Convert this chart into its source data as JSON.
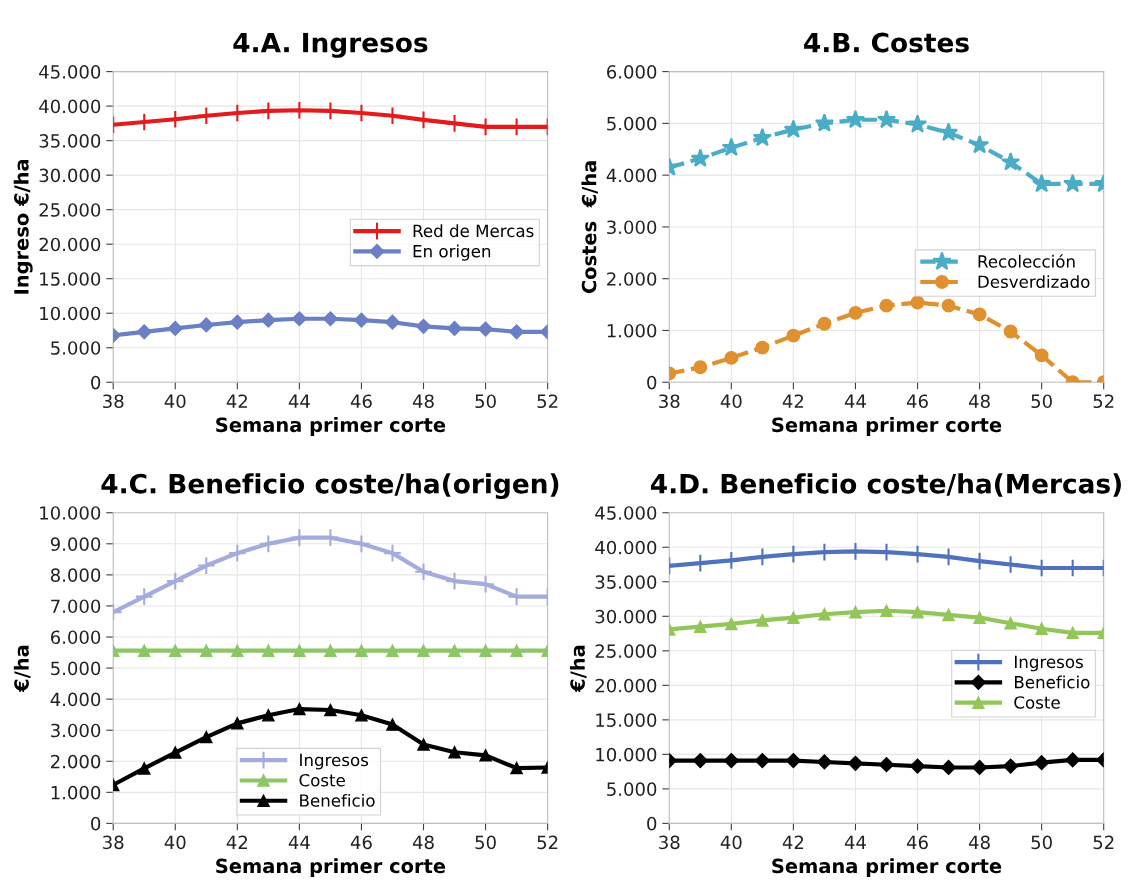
{
  "chart_data": [
    {
      "type": "line",
      "title": "4.A. Ingresos",
      "xlabel": "Semana primer corte",
      "ylabel": "Ingreso €/ha",
      "legend": "center right",
      "grid": true,
      "x": [
        38,
        39,
        40,
        41,
        42,
        43,
        44,
        45,
        46,
        47,
        48,
        49,
        50,
        51,
        52
      ],
      "xlim": [
        38,
        52
      ],
      "xticks": [
        38,
        40,
        42,
        44,
        46,
        48,
        50,
        52
      ],
      "ylim": [
        0,
        45000
      ],
      "yticks": [
        {
          "value": 0,
          "label": "0"
        },
        {
          "value": 5000,
          "label": "5.000"
        },
        {
          "value": 10000,
          "label": "10.000"
        },
        {
          "value": 15000,
          "label": "15.000"
        },
        {
          "value": 20000,
          "label": "20.000"
        },
        {
          "value": 25000,
          "label": "25.000"
        },
        {
          "value": 30000,
          "label": "30.000"
        },
        {
          "value": 35000,
          "label": "35.000"
        },
        {
          "value": 40000,
          "label": "40.000"
        },
        {
          "value": 45000,
          "label": "45.000"
        }
      ],
      "series": [
        {
          "name": "Red de Mercas",
          "color": "#e41a1c",
          "marker": "cross",
          "values": [
            37300,
            37700,
            38100,
            38600,
            39000,
            39300,
            39400,
            39300,
            39000,
            38600,
            38000,
            37500,
            37000,
            37000,
            37000
          ]
        },
        {
          "name": "En origen",
          "color": "#6b7fc4",
          "marker": "diamond",
          "values": [
            6800,
            7300,
            7800,
            8300,
            8700,
            9000,
            9200,
            9200,
            9000,
            8700,
            8100,
            7800,
            7700,
            7300,
            7300
          ]
        }
      ]
    },
    {
      "type": "line",
      "title": "4.B. Costes",
      "xlabel": "Semana primer corte",
      "ylabel": "Costes  €/ha",
      "legend": "lower right",
      "grid": true,
      "line_style": "dashed",
      "x": [
        38,
        39,
        40,
        41,
        42,
        43,
        44,
        45,
        46,
        47,
        48,
        49,
        50,
        51,
        52
      ],
      "xlim": [
        38,
        52
      ],
      "xticks": [
        38,
        40,
        42,
        44,
        46,
        48,
        50,
        52
      ],
      "ylim": [
        0,
        6000
      ],
      "yticks": [
        {
          "value": 0,
          "label": "0"
        },
        {
          "value": 1000,
          "label": "1.000"
        },
        {
          "value": 2000,
          "label": "2.000"
        },
        {
          "value": 3000,
          "label": "3.000"
        },
        {
          "value": 4000,
          "label": "4.000"
        },
        {
          "value": 5000,
          "label": "5.000"
        },
        {
          "value": 6000,
          "label": "6.000"
        }
      ],
      "series": [
        {
          "name": "Recolección",
          "color": "#4bacc6",
          "marker": "star",
          "values": [
            4150,
            4320,
            4530,
            4720,
            4880,
            5000,
            5070,
            5070,
            4980,
            4820,
            4580,
            4250,
            3830,
            3830,
            3830
          ]
        },
        {
          "name": "Desverdizado",
          "color": "#e0902f",
          "marker": "circle",
          "values": [
            170,
            290,
            470,
            670,
            900,
            1130,
            1340,
            1480,
            1540,
            1480,
            1310,
            980,
            520,
            0,
            0
          ]
        }
      ]
    },
    {
      "type": "line",
      "title": "4.C. Beneficio coste/ha(origen)",
      "xlabel": "Semana primer corte",
      "ylabel": "€/ha",
      "legend": "bottom",
      "grid": true,
      "x": [
        38,
        39,
        40,
        41,
        42,
        43,
        44,
        45,
        46,
        47,
        48,
        49,
        50,
        51,
        52
      ],
      "xlim": [
        38,
        52
      ],
      "xticks": [
        38,
        40,
        42,
        44,
        46,
        48,
        50,
        52
      ],
      "ylim": [
        0,
        10000
      ],
      "yticks": [
        {
          "value": 0,
          "label": "0"
        },
        {
          "value": 1000,
          "label": "1.000"
        },
        {
          "value": 2000,
          "label": "2.000"
        },
        {
          "value": 3000,
          "label": "3.000"
        },
        {
          "value": 4000,
          "label": "4.000"
        },
        {
          "value": 5000,
          "label": "5.000"
        },
        {
          "value": 6000,
          "label": "6.000"
        },
        {
          "value": 7000,
          "label": "7.000"
        },
        {
          "value": 8000,
          "label": "8.000"
        },
        {
          "value": 9000,
          "label": "9.000"
        },
        {
          "value": 10000,
          "label": "10.000"
        }
      ],
      "series": [
        {
          "name": "Ingresos",
          "color": "#a3acdc",
          "marker": "cross",
          "values": [
            6800,
            7300,
            7800,
            8300,
            8700,
            9000,
            9200,
            9200,
            9000,
            8700,
            8100,
            7800,
            7700,
            7300,
            7300
          ]
        },
        {
          "name": "Coste",
          "color": "#8cc665",
          "marker": "triangle",
          "values": [
            5560,
            5560,
            5560,
            5560,
            5560,
            5560,
            5560,
            5560,
            5560,
            5560,
            5560,
            5560,
            5560,
            5560,
            5560
          ]
        },
        {
          "name": "Beneficio",
          "color": "#000000",
          "marker": "triangle",
          "values": [
            1240,
            1770,
            2280,
            2780,
            3220,
            3480,
            3680,
            3650,
            3480,
            3180,
            2540,
            2290,
            2190,
            1780,
            1800
          ]
        }
      ]
    },
    {
      "type": "line",
      "title": "4.D. Beneficio coste/ha(Mercas)",
      "xlabel": "Semana primer corte",
      "ylabel": "€/ha",
      "legend": "center right",
      "grid": true,
      "x": [
        38,
        39,
        40,
        41,
        42,
        43,
        44,
        45,
        46,
        47,
        48,
        49,
        50,
        51,
        52
      ],
      "xlim": [
        38,
        52
      ],
      "xticks": [
        38,
        40,
        42,
        44,
        46,
        48,
        50,
        52
      ],
      "ylim": [
        0,
        45000
      ],
      "yticks": [
        {
          "value": 0,
          "label": "0"
        },
        {
          "value": 5000,
          "label": "5.000"
        },
        {
          "value": 10000,
          "label": "10.000"
        },
        {
          "value": 15000,
          "label": "15.000"
        },
        {
          "value": 20000,
          "label": "20.000"
        },
        {
          "value": 25000,
          "label": "25.000"
        },
        {
          "value": 30000,
          "label": "30.000"
        },
        {
          "value": 35000,
          "label": "35.000"
        },
        {
          "value": 40000,
          "label": "40.000"
        },
        {
          "value": 45000,
          "label": "45.000"
        }
      ],
      "series": [
        {
          "name": "Ingresos",
          "color": "#4f72be",
          "marker": "cross",
          "values": [
            37300,
            37700,
            38100,
            38600,
            39000,
            39300,
            39400,
            39300,
            39000,
            38600,
            38000,
            37500,
            37000,
            37000,
            37000
          ]
        },
        {
          "name": "Beneficio",
          "color": "#000000",
          "marker": "diamond",
          "values": [
            9100,
            9100,
            9100,
            9100,
            9100,
            8900,
            8700,
            8500,
            8300,
            8100,
            8100,
            8300,
            8800,
            9200,
            9200
          ]
        },
        {
          "name": "Coste",
          "color": "#92c659",
          "marker": "triangle",
          "values": [
            28100,
            28500,
            28900,
            29400,
            29800,
            30300,
            30600,
            30800,
            30600,
            30200,
            29800,
            29000,
            28200,
            27600,
            27600
          ]
        }
      ]
    }
  ]
}
